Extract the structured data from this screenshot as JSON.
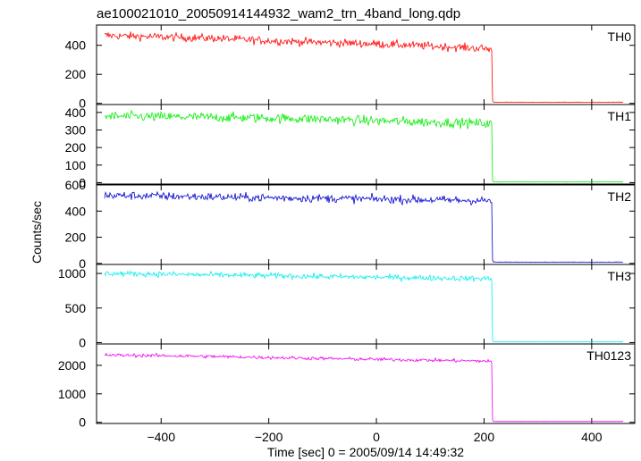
{
  "chart_data": {
    "type": "line",
    "title": "ae100021010_20050914144932_wam2_trn_4band_long.qdp",
    "xlabel": "Time [sec] 0 = 2005/09/14 14:49:32",
    "ylabel": "Counts/sec",
    "xlim": [
      -520,
      480
    ],
    "x_ticks": [
      -400,
      -200,
      0,
      200,
      400
    ],
    "x_tick_labels": [
      "−400",
      "−200",
      "0",
      "200",
      "400"
    ],
    "drop_time": 215,
    "x_start": -505,
    "x_end": 458,
    "panels": [
      {
        "name": "TH0",
        "color": "#ff0000",
        "ylim": [
          -8,
          540
        ],
        "y_ticks": [
          0,
          200,
          400
        ],
        "before_drop": {
          "x": [
            -505,
            -400,
            -300,
            -200,
            -100,
            0,
            100,
            200,
            215
          ],
          "y": [
            468,
            458,
            448,
            432,
            420,
            410,
            395,
            378,
            372
          ]
        },
        "noise": 28,
        "after_drop_level": 8
      },
      {
        "name": "TH1",
        "color": "#00ee00",
        "ylim": [
          -8,
          445
        ],
        "y_ticks": [
          0,
          100,
          200,
          300,
          400
        ],
        "before_drop": {
          "x": [
            -505,
            -400,
            -300,
            -200,
            -100,
            0,
            100,
            200,
            215
          ],
          "y": [
            378,
            375,
            372,
            368,
            362,
            352,
            345,
            338,
            335
          ]
        },
        "noise": 28,
        "after_drop_level": 4
      },
      {
        "name": "TH2",
        "color": "#0000cc",
        "ylim": [
          -8,
          600
        ],
        "y_ticks": [
          0,
          200,
          400,
          600
        ],
        "before_drop": {
          "x": [
            -505,
            -400,
            -300,
            -200,
            -100,
            0,
            100,
            200,
            215
          ],
          "y": [
            520,
            515,
            508,
            502,
            498,
            492,
            486,
            480,
            478
          ]
        },
        "noise": 32,
        "after_drop_level": 10
      },
      {
        "name": "TH3",
        "color": "#00eeee",
        "ylim": [
          -20,
          1130
        ],
        "y_ticks": [
          0,
          500,
          1000
        ],
        "before_drop": {
          "x": [
            -505,
            -400,
            -300,
            -200,
            -100,
            0,
            100,
            200,
            215
          ],
          "y": [
            1000,
            990,
            978,
            968,
            955,
            945,
            935,
            925,
            920
          ]
        },
        "noise": 40,
        "after_drop_level": 10
      },
      {
        "name": "TH0123",
        "color": "#ee00ee",
        "ylim": [
          -40,
          2750
        ],
        "y_ticks": [
          0,
          1000,
          2000
        ],
        "before_drop": {
          "x": [
            -505,
            -400,
            -300,
            -200,
            -100,
            0,
            100,
            200,
            215
          ],
          "y": [
            2360,
            2340,
            2310,
            2275,
            2240,
            2210,
            2180,
            2150,
            2140
          ]
        },
        "noise": 60,
        "after_drop_level": 30
      }
    ]
  }
}
